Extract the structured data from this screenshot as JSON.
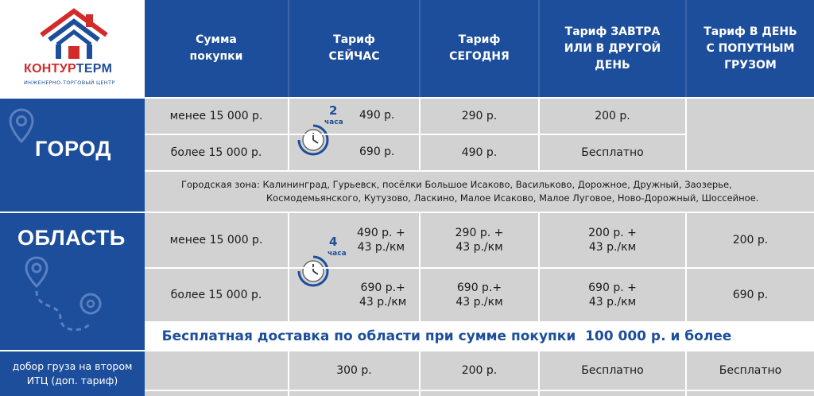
{
  "brand": {
    "name_part1": "КОНТУР",
    "name_part2": "ТЕРМ",
    "subtitle": "ИНЖЕНЕРНО-ТОРГОВЫЙ ЦЕНТР"
  },
  "headers": {
    "sum": "Сумма покупки",
    "now_1": "Тариф",
    "now_2": "СЕЙЧАС",
    "today_1": "Тариф",
    "today_2": "СЕГОДНЯ",
    "tomorrow_1": "Тариф",
    "tomorrow_bold": "ЗАВТРА",
    "tomorrow_2": "ИЛИ В ДРУГОЙ",
    "tomorrow_3": "ДЕНЬ",
    "day_1": "Тариф",
    "day_bold": "В ДЕНЬ",
    "day_2": "С ПОПУТНЫМ",
    "day_3": "ГРУЗОМ"
  },
  "city": {
    "label": "ГОРОД",
    "time_num": "2",
    "time_unit": "часа",
    "rows": [
      {
        "sum": "менее 15 000 р.",
        "now": "490 р.",
        "today": "290 р.",
        "tomorrow": "200 р."
      },
      {
        "sum": "более 15 000 р.",
        "now": "690 р.",
        "today": "490 р.",
        "tomorrow": "Бесплатно"
      }
    ],
    "zone_line1": "Городская зона: Калининград, Гурьевск, посёлки Большое Исаково, Васильково, Дорожное, Дружный, Заозерье,",
    "zone_line2": "Космодемьянского, Кутузово, Ласкино, Малое Исаково, Малое Луговое, Ново-Дорожный, Шоссейное."
  },
  "region": {
    "label": "ОБЛАСТЬ",
    "time_num": "4",
    "time_unit": "часа",
    "rows": [
      {
        "sum": "менее 15 000 р.",
        "now_1": "490 р. +",
        "now_2": "43 р./км",
        "today_1": "290 р. +",
        "today_2": "43 р./км",
        "tomorrow_1": "200 р. +",
        "tomorrow_2": "43 р./км",
        "day": "200 р."
      },
      {
        "sum": "более 15 000 р.",
        "now_1": "690 р.+",
        "now_2": "43 р./км",
        "today_1": "690 р.+",
        "today_2": "43 р./км",
        "tomorrow_1": "690 р. +",
        "tomorrow_2": "43 р./км",
        "day": "690 р."
      }
    ],
    "promo": "Бесплатная доставка по области при сумме покупки  100 000 р. и более"
  },
  "extra": {
    "label_1": "добор груза на втором",
    "label_2": "ИТЦ (доп. тариф)",
    "now": "300 р.",
    "today": "200 р.",
    "tomorrow": "Бесплатно",
    "day": "Бесплатно"
  },
  "colors": {
    "brand_blue": "#1d4e9b",
    "brand_red": "#d32a2a",
    "cell_gray": "#d2d2d2"
  },
  "icons": [
    "house-logo-icon",
    "map-pin-icon",
    "route-icon",
    "clock-icon"
  ]
}
